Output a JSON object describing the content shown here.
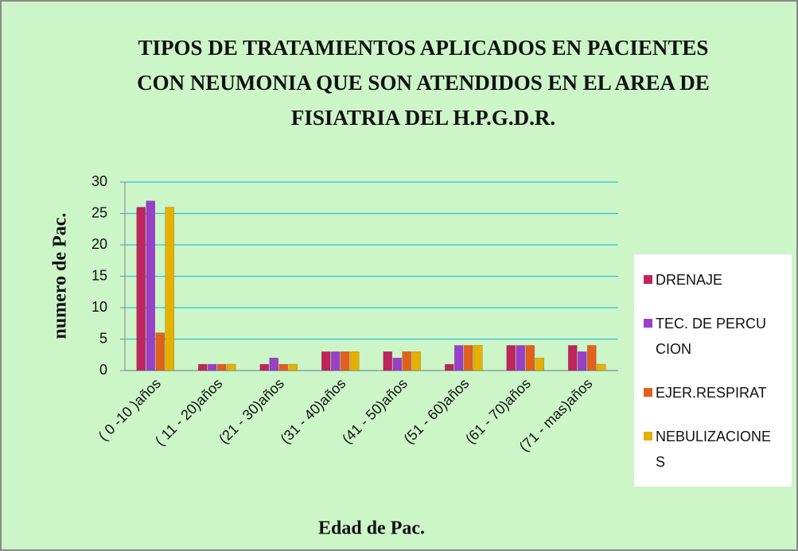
{
  "chart_data": {
    "type": "bar",
    "title": "TIPOS DE TRATAMIENTOS APLICADOS EN PACIENTES CON NEUMONIA QUE SON ATENDIDOS EN EL AREA DE FISIATRIA DEL H.P.G.D.R.",
    "x_label": "Edad de Pac.",
    "y_label": "numero de Pac.",
    "categories": [
      "( 0 -10 )años",
      "( 11 - 20)años",
      "(21 - 30)años",
      "(31 - 40)años",
      "(41 - 50)años",
      "(51 - 60)años",
      "(61 - 70)años",
      "(71 - mas)años"
    ],
    "series": [
      {
        "name": "DRENAJE",
        "color": "#c0245c",
        "values": [
          26,
          1,
          1,
          3,
          3,
          1,
          4,
          4
        ]
      },
      {
        "name": "TEC. DE PERCUCION",
        "color": "#9b3fc8",
        "values": [
          27,
          1,
          2,
          3,
          2,
          4,
          4,
          3
        ]
      },
      {
        "name": "EJER.RESPIRAT",
        "color": "#e3601a",
        "values": [
          6,
          1,
          1,
          3,
          3,
          4,
          4,
          4
        ]
      },
      {
        "name": "NEBULIZACIONES",
        "color": "#e6b000",
        "values": [
          26,
          1,
          1,
          3,
          3,
          4,
          2,
          1
        ]
      }
    ],
    "ylim": [
      0,
      30
    ],
    "yticks": [
      0,
      5,
      10,
      15,
      20,
      25,
      30
    ],
    "grid": true,
    "legend": "right"
  }
}
